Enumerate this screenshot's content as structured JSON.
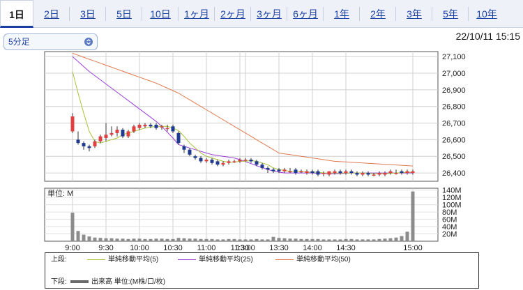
{
  "tabs": [
    {
      "label": "1日",
      "active": true
    },
    {
      "label": "2日"
    },
    {
      "label": "3日"
    },
    {
      "label": "5日"
    },
    {
      "label": "10日"
    },
    {
      "label": "1ヶ月"
    },
    {
      "label": "2ヶ月"
    },
    {
      "label": "3ヶ月"
    },
    {
      "label": "6ヶ月"
    },
    {
      "label": "1年"
    },
    {
      "label": "2年"
    },
    {
      "label": "3年"
    },
    {
      "label": "5年"
    },
    {
      "label": "10年"
    }
  ],
  "interval_select": {
    "value": "5分足"
  },
  "timestamp": "22/10/11 15:15",
  "colors": {
    "up": "#e04040",
    "down": "#1f3a93",
    "ma5": "#a8c23a",
    "ma25": "#9a40d8",
    "ma50": "#e07a50",
    "volume": "#8c8c8c"
  },
  "chart_data": {
    "type": "candlestick",
    "price_axis": {
      "ticks": [
        26400,
        26500,
        26600,
        26700,
        26800,
        26900,
        27000,
        27100
      ],
      "range": [
        26350,
        27130
      ]
    },
    "x_ticks": [
      "9:00",
      "9:30",
      "10:00",
      "10:30",
      "11:00",
      "11:30",
      "13:00",
      "13:30",
      "14:00",
      "14:30",
      "15:00"
    ],
    "volume_axis": {
      "unit_label": "単位: M",
      "ticks": [
        "20M",
        "40M",
        "60M",
        "80M",
        "100M",
        "120M",
        "140M"
      ],
      "range": [
        0,
        145
      ]
    },
    "candles_open": [
      26650,
      26600,
      26580,
      26560,
      26560,
      26590,
      26610,
      26630,
      26640,
      26660,
      26620,
      26650,
      26670,
      26680,
      26690,
      26690,
      26680,
      26670,
      26680,
      26640,
      26560,
      26540,
      26500,
      26490,
      26470,
      26480,
      26470,
      26450,
      26460,
      26470,
      26470,
      26480,
      26480,
      26470,
      26450,
      26430,
      26420,
      26420,
      26410,
      26410,
      26420,
      26410,
      26400,
      26410,
      26410,
      26400,
      26390,
      26400,
      26410,
      26400,
      26410,
      26400,
      26390,
      26400,
      26390,
      26390,
      26390,
      26400,
      26400,
      26410,
      26400,
      26400
    ],
    "candles_close": [
      26740,
      26580,
      26560,
      26550,
      26590,
      26620,
      26630,
      26640,
      26660,
      26620,
      26650,
      26680,
      26690,
      26690,
      26680,
      26670,
      26680,
      26670,
      26650,
      26580,
      26540,
      26510,
      26490,
      26470,
      26480,
      26460,
      26450,
      26460,
      26470,
      26470,
      26480,
      26480,
      26470,
      26450,
      26430,
      26420,
      26410,
      26410,
      26420,
      26410,
      26400,
      26410,
      26410,
      26400,
      26390,
      26400,
      26410,
      26410,
      26400,
      26410,
      26400,
      26390,
      26400,
      26390,
      26390,
      26400,
      26400,
      26410,
      26400,
      26400,
      26410,
      26410
    ],
    "candles_high": [
      26760,
      26650,
      26590,
      26570,
      26600,
      26630,
      26700,
      26680,
      26680,
      26670,
      26660,
      26690,
      26700,
      26700,
      26700,
      26700,
      26690,
      26690,
      26690,
      26650,
      26570,
      26550,
      26510,
      26500,
      26490,
      26490,
      26480,
      26470,
      26480,
      26480,
      26490,
      26490,
      26490,
      26480,
      26460,
      26440,
      26430,
      26430,
      26430,
      26430,
      26430,
      26420,
      26420,
      26420,
      26420,
      26410,
      26410,
      26420,
      26420,
      26420,
      26420,
      26410,
      26410,
      26410,
      26400,
      26410,
      26410,
      26420,
      26420,
      26420,
      26420,
      26420
    ],
    "candles_low": [
      26640,
      26570,
      26540,
      26530,
      26550,
      26580,
      26590,
      26620,
      26620,
      26610,
      26610,
      26640,
      26660,
      26670,
      26670,
      26660,
      26660,
      26650,
      26640,
      26570,
      26520,
      26500,
      26480,
      26460,
      26460,
      26450,
      26440,
      26440,
      26450,
      26460,
      26460,
      26470,
      26460,
      26440,
      26420,
      26400,
      26400,
      26400,
      26400,
      26400,
      26390,
      26400,
      26390,
      26390,
      26380,
      26380,
      26380,
      26390,
      26390,
      26390,
      26390,
      26380,
      26380,
      26380,
      26380,
      26380,
      26380,
      26390,
      26390,
      26390,
      26390,
      26390
    ],
    "ma5": [
      27010,
      26880,
      26760,
      26650,
      26590,
      26580,
      26590,
      26600,
      26610,
      26630,
      26640,
      26650,
      26660,
      26670,
      26675,
      26680,
      26680,
      26680,
      26670,
      26655,
      26620,
      26580,
      26550,
      26520,
      26500,
      26490,
      26480,
      26470,
      26465,
      26465,
      26470,
      26470,
      26475,
      26470,
      26460,
      26450,
      26430,
      26420,
      26415,
      26410,
      26410,
      26410,
      26405,
      26405,
      26405,
      26400,
      26400,
      26400,
      26400,
      26400,
      26400,
      26400,
      26400,
      26398,
      26395,
      26395,
      26395,
      26398,
      26400,
      26402,
      26404,
      26405
    ],
    "ma25": [
      27100,
      27070,
      27040,
      27010,
      26985,
      26960,
      26935,
      26910,
      26885,
      26860,
      26835,
      26810,
      26785,
      26760,
      26735,
      26710,
      26680,
      26645,
      26610,
      26570,
      26560,
      26550,
      26540,
      26530,
      26520,
      26510,
      26505,
      26500,
      26495,
      26490,
      26480,
      26468,
      26456,
      26444,
      26432,
      26420,
      26412,
      26405,
      26400,
      26400,
      26400,
      26400,
      26400,
      26400,
      26398,
      26396,
      26395,
      26395,
      26396,
      26398,
      26400,
      26400,
      26400,
      26400,
      26400,
      26400,
      26400,
      26400,
      26400,
      26400,
      26400,
      26400
    ],
    "ma50": [
      27120,
      27108,
      27096,
      27084,
      27072,
      27060,
      27048,
      27036,
      27024,
      27012,
      27000,
      26988,
      26976,
      26964,
      26952,
      26940,
      26925,
      26910,
      26895,
      26880,
      26860,
      26840,
      26820,
      26800,
      26780,
      26760,
      26740,
      26720,
      26700,
      26680,
      26660,
      26640,
      26620,
      26600,
      26580,
      26560,
      26540,
      26520,
      26515,
      26510,
      26505,
      26500,
      26495,
      26490,
      26485,
      26480,
      26475,
      26470,
      26468,
      26466,
      26464,
      26462,
      26460,
      26458,
      26456,
      26454,
      26452,
      26450,
      26448,
      26446,
      26444,
      26442
    ],
    "volumes": [
      78,
      28,
      18,
      13,
      10,
      9,
      8,
      8,
      7,
      7,
      6,
      7,
      7,
      6,
      6,
      7,
      7,
      6,
      6,
      9,
      8,
      7,
      7,
      6,
      6,
      6,
      5,
      5,
      6,
      6,
      5,
      5,
      5,
      6,
      5,
      5,
      12,
      9,
      8,
      7,
      7,
      6,
      6,
      6,
      6,
      5,
      5,
      5,
      5,
      6,
      6,
      5,
      5,
      5,
      5,
      6,
      7,
      8,
      10,
      14,
      26,
      136
    ],
    "session_break_after_index": 30,
    "legend": {
      "upper_label": "上段:",
      "upper_items": [
        "単純移動平均(5)",
        "単純移動平均(25)",
        "単純移動平均(50)"
      ],
      "lower_label": "下段:",
      "lower_item": "出来高 単位:(M株/口/枚)"
    }
  }
}
